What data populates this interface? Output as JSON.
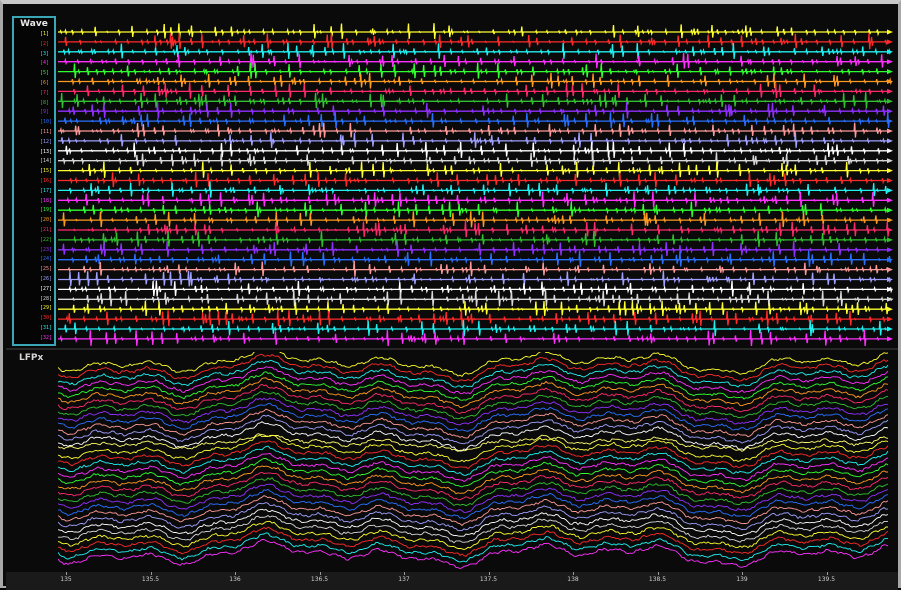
{
  "wave_panel": {
    "title": "Wave",
    "channels": [
      "[1]",
      "[2]",
      "[3]",
      "[4]",
      "[5]",
      "[6]",
      "[7]",
      "[8]",
      "[9]",
      "[10]",
      "[11]",
      "[12]",
      "[13]",
      "[14]",
      "[15]",
      "[16]",
      "[17]",
      "[18]",
      "[19]",
      "[20]",
      "[21]",
      "[22]",
      "[23]",
      "[24]",
      "[25]",
      "[26]",
      "[27]",
      "[28]",
      "[29]",
      "[30]",
      "[31]",
      "[32]"
    ],
    "colors": [
      "#ffff30",
      "#ff2a2a",
      "#20f0f0",
      "#ff30ff",
      "#30ff30",
      "#ff9a20",
      "#ff2a6a",
      "#30c030",
      "#9030ff",
      "#2a70ff",
      "#ff9a9a",
      "#a0a0ff",
      "#ffffff",
      "#d8d8d8"
    ]
  },
  "lfp_panel": {
    "title": "LFPx"
  },
  "time_axis": {
    "ticks": [
      "135",
      "135.5",
      "136",
      "136.5",
      "137",
      "137.5",
      "138",
      "138.5",
      "139",
      "139.5"
    ]
  }
}
